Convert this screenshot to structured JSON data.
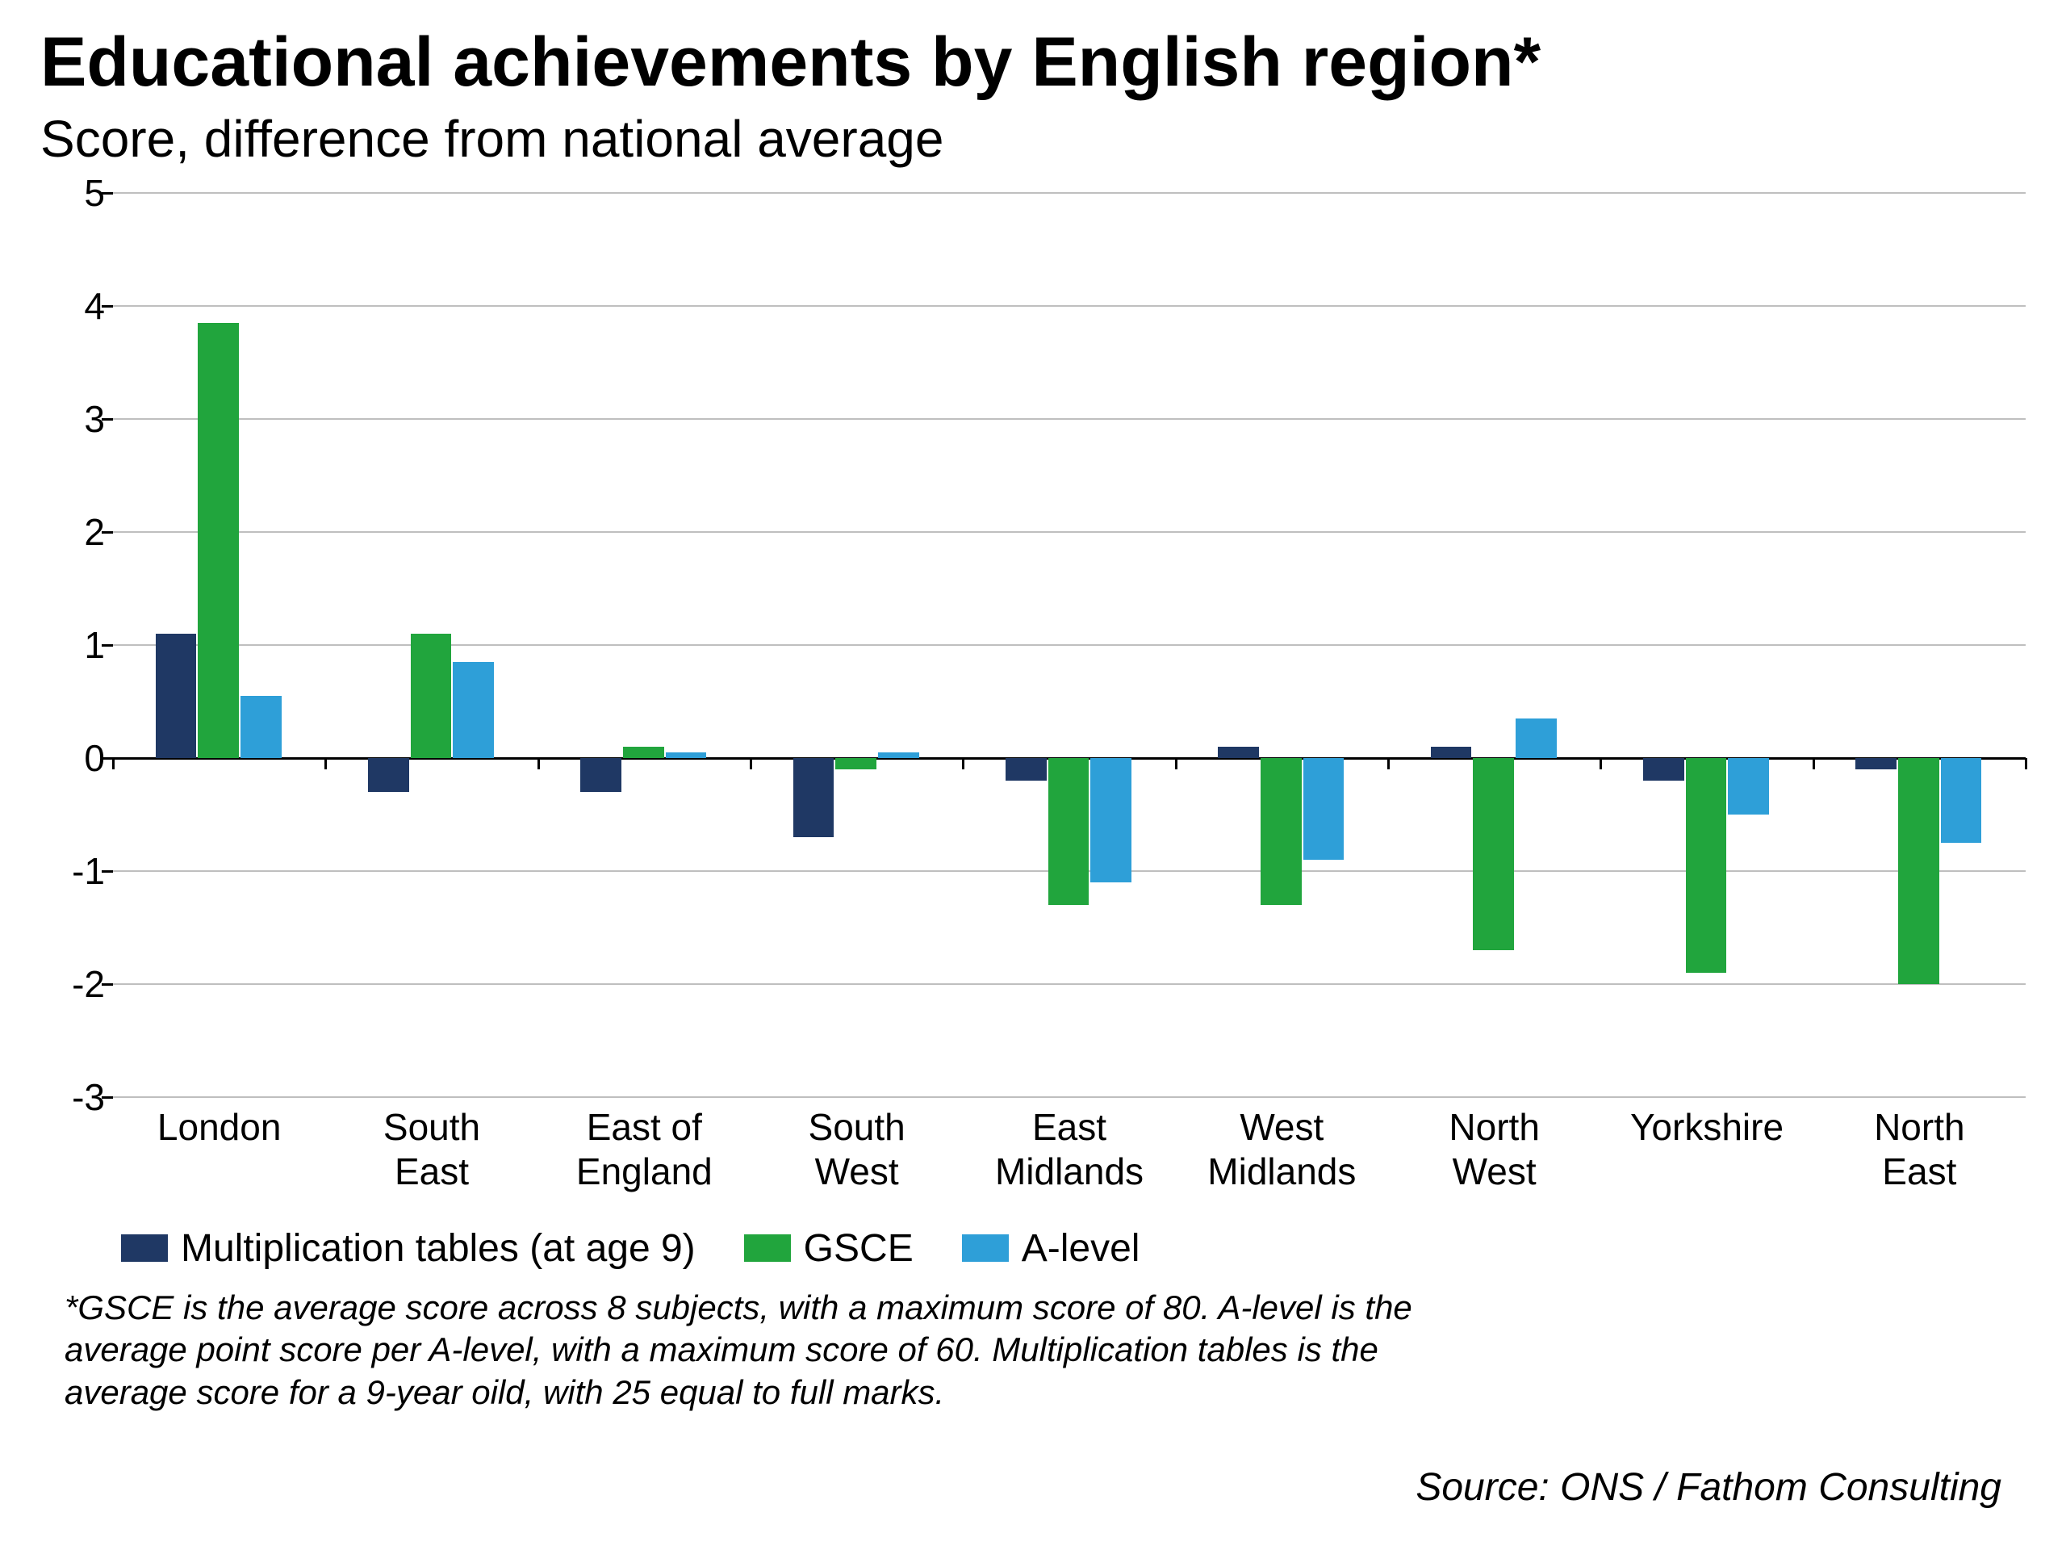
{
  "title": "Educational achievements by English region*",
  "subtitle": "Score, difference from national average",
  "chart": {
    "type": "bar",
    "categories": [
      "London",
      "South\nEast",
      "East of\nEngland",
      "South\nWest",
      "East\nMidlands",
      "West\nMidlands",
      "North\nWest",
      "Yorkshire",
      "North\nEast"
    ],
    "series": [
      {
        "name": "Multiplication tables (at age 9)",
        "color": "#1f3864",
        "values": [
          1.1,
          -0.3,
          -0.3,
          -0.7,
          -0.2,
          0.1,
          0.1,
          -0.2,
          -0.1
        ]
      },
      {
        "name": "GSCE",
        "color": "#21a53d",
        "values": [
          3.85,
          1.1,
          0.1,
          -0.1,
          -1.3,
          -1.3,
          -1.7,
          -1.9,
          -2.0
        ]
      },
      {
        "name": "A-level",
        "color": "#2e9fd8",
        "values": [
          0.55,
          0.85,
          0.05,
          0.05,
          -1.1,
          -0.9,
          0.35,
          -0.5,
          -0.75
        ]
      }
    ],
    "ylim": [
      -3,
      5
    ],
    "ytick_step": 1,
    "grid_color": "#bfbfbf",
    "axis_color": "#000000",
    "background_color": "#ffffff",
    "tick_fontsize": 46,
    "bar_group_width": 0.6,
    "bar_gap": 0.0
  },
  "legend": {
    "items": [
      {
        "label": "Multiplication tables (at age 9)",
        "color": "#1f3864"
      },
      {
        "label": "GSCE",
        "color": "#21a53d"
      },
      {
        "label": "A-level",
        "color": "#2e9fd8"
      }
    ]
  },
  "footnote": "*GSCE is the average score across 8 subjects, with a maximum score of 80.\nA-level is the average point score per A-level, with a maximum score of 60.\nMultiplication tables is the average score for a 9-year oild, with 25 equal to\nfull marks.",
  "source": "Source: ONS / Fathom Consulting"
}
